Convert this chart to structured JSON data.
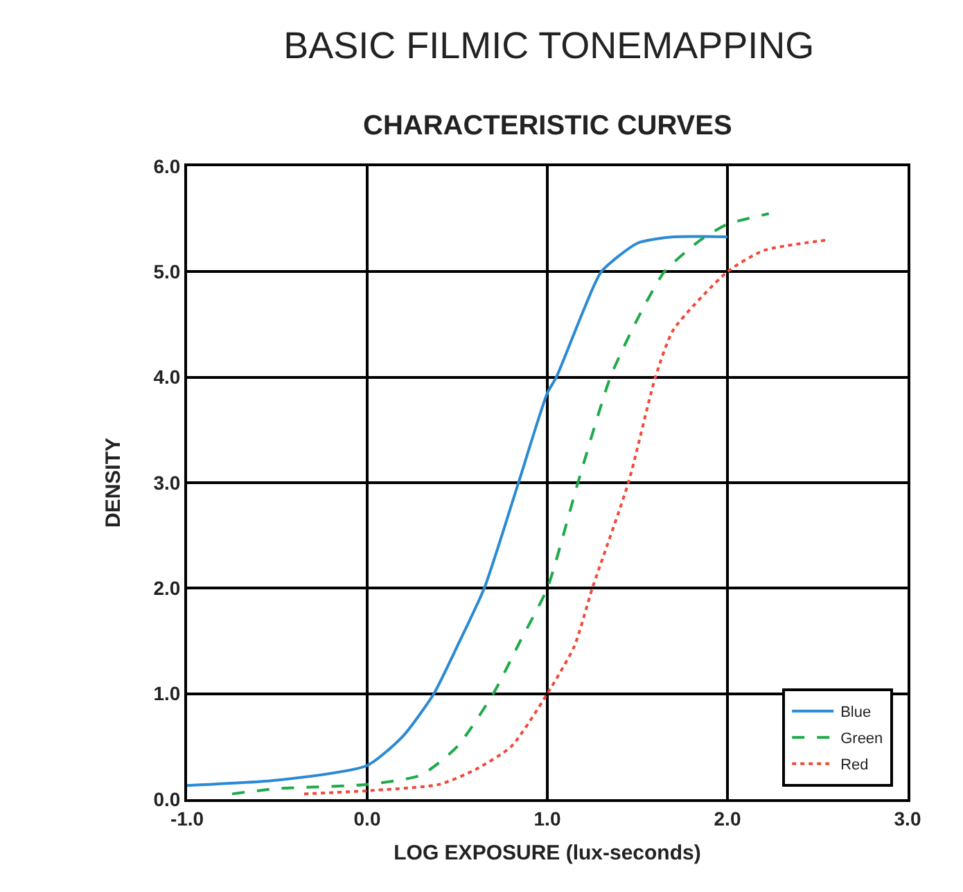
{
  "chart_data": {
    "type": "line",
    "title": "BASIC FILMIC TONEMAPPING",
    "subtitle": "CHARACTERISTIC CURVES",
    "xlabel": "LOG EXPOSURE (lux-seconds)",
    "ylabel": "DENSITY",
    "xlim": [
      -1,
      3
    ],
    "ylim": [
      0,
      6
    ],
    "xticks": [
      {
        "value": -1,
        "label": "-1.0"
      },
      {
        "value": 0,
        "label": "0.0"
      },
      {
        "value": 1,
        "label": "1.0"
      },
      {
        "value": 2,
        "label": "2.0"
      },
      {
        "value": 3,
        "label": "3.0"
      }
    ],
    "yticks": [
      {
        "value": 0,
        "label": "0.0"
      },
      {
        "value": 1,
        "label": "1.0"
      },
      {
        "value": 2,
        "label": "2.0"
      },
      {
        "value": 3,
        "label": "3.0"
      },
      {
        "value": 4,
        "label": "4.0"
      },
      {
        "value": 5,
        "label": "5.0"
      },
      {
        "value": 6,
        "label": "6.0"
      }
    ],
    "grid": true,
    "legend": "bottom right",
    "marker": "none",
    "series": [
      {
        "name": "Blue",
        "color": "#2a8ad4",
        "line_style": "solid",
        "x": [
          -1,
          -0.5,
          0,
          0.2,
          0.37,
          0.5,
          0.65,
          0.84,
          1.0,
          1.05,
          1.2,
          1.3,
          1.5,
          1.7,
          2.0
        ],
        "values": [
          0.13,
          0.18,
          0.32,
          0.6,
          1.0,
          1.45,
          2.0,
          3.0,
          3.85,
          4.0,
          4.63,
          5.0,
          5.27,
          5.33,
          5.33
        ]
      },
      {
        "name": "Green",
        "color": "#1faa4a",
        "line_style": "dashed",
        "x": [
          -0.75,
          -0.5,
          0,
          0.3,
          0.5,
          0.7,
          0.85,
          1.0,
          1.17,
          1.35,
          1.5,
          1.65,
          1.85,
          2.0,
          2.23
        ],
        "values": [
          0.05,
          0.1,
          0.14,
          0.23,
          0.5,
          1.0,
          1.5,
          2.0,
          3.0,
          4.0,
          4.55,
          5.0,
          5.3,
          5.45,
          5.55
        ]
      },
      {
        "name": "Red",
        "color": "#f04a3a",
        "line_style": "dotted",
        "x": [
          -0.35,
          0,
          0.4,
          0.6,
          0.8,
          1.0,
          1.15,
          1.25,
          1.45,
          1.6,
          1.7,
          2.0,
          2.2,
          2.55
        ],
        "values": [
          0.05,
          0.08,
          0.14,
          0.28,
          0.5,
          1.0,
          1.45,
          2.0,
          3.0,
          4.0,
          4.45,
          5.0,
          5.2,
          5.3
        ]
      }
    ]
  }
}
